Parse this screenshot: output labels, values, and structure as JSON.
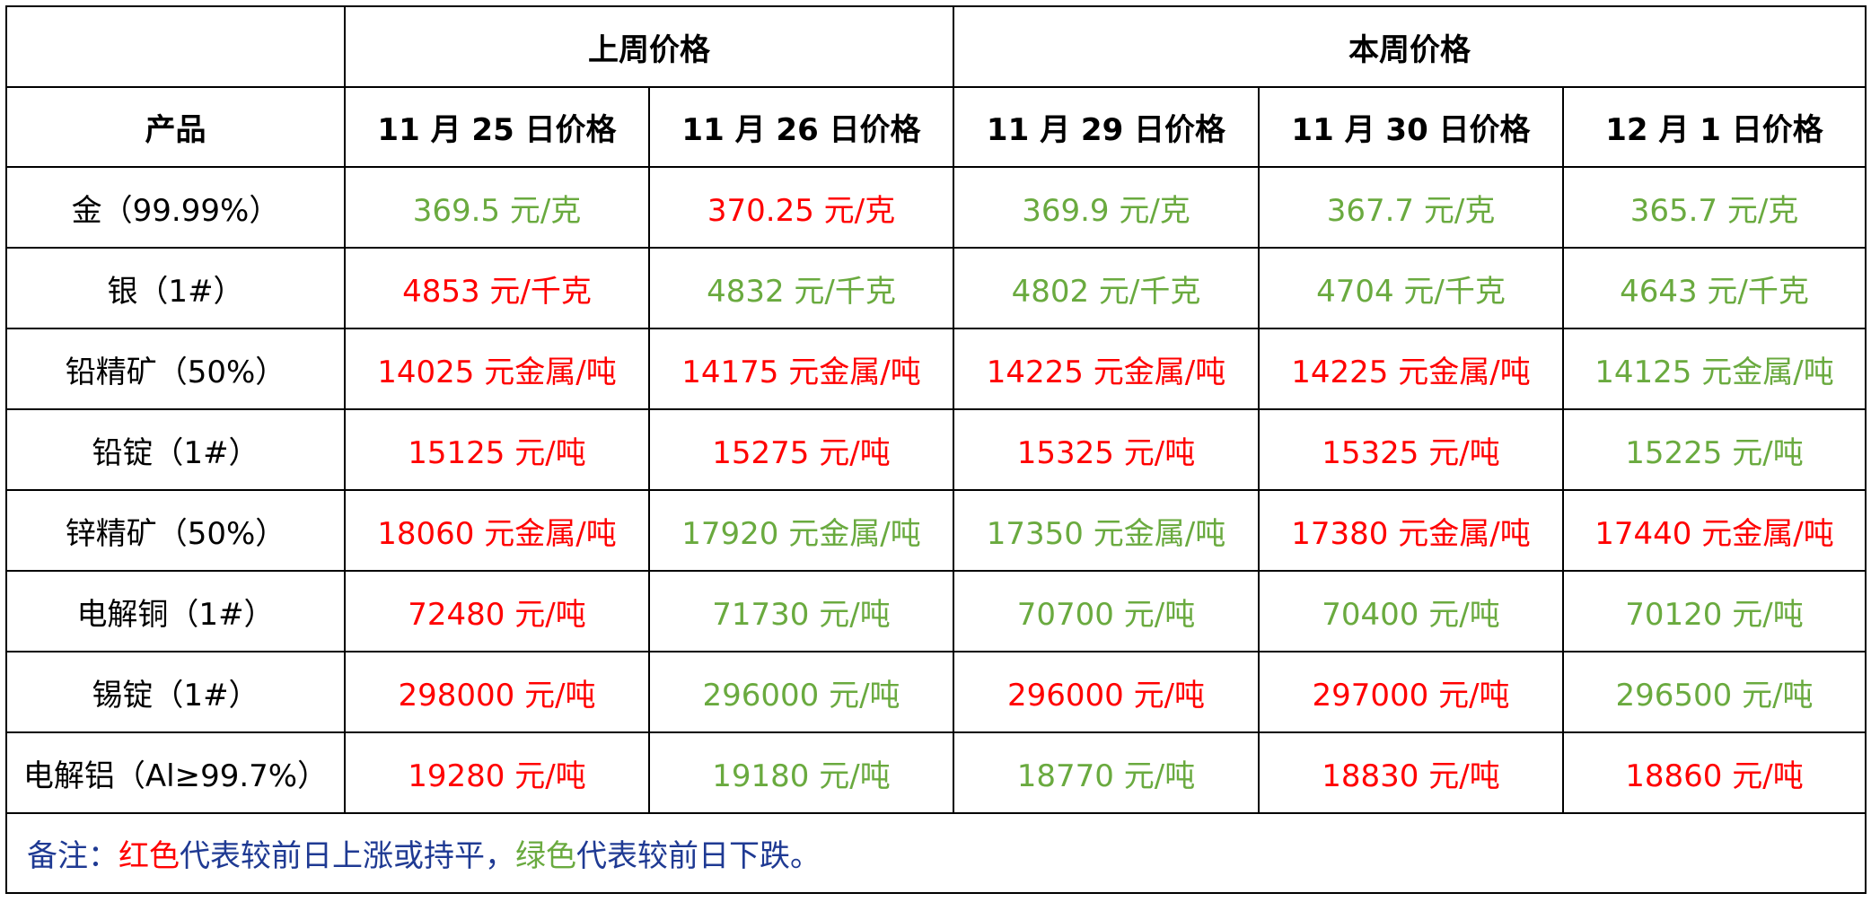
{
  "header": {
    "group_headers": [
      "上周价格",
      "本周价格"
    ],
    "product_header": "产品",
    "date_headers": [
      "11 月 25 日价格",
      "11 月 26 日价格",
      "11 月 29 日价格",
      "11 月 30 日价格",
      "12 月 1 日价格"
    ]
  },
  "rows": [
    {
      "product": "金（99.99%）",
      "cells": [
        {
          "text": "369.5 元/克",
          "color": "#6aaa3f"
        },
        {
          "text": "370.25 元/克",
          "color": "#ff0000"
        },
        {
          "text": "369.9 元/克",
          "color": "#6aaa3f"
        },
        {
          "text": "367.7 元/克",
          "color": "#6aaa3f"
        },
        {
          "text": "365.7 元/克",
          "color": "#6aaa3f"
        }
      ]
    },
    {
      "product": "银（1#）",
      "cells": [
        {
          "text": "4853 元/千克",
          "color": "#ff0000"
        },
        {
          "text": "4832 元/千克",
          "color": "#6aaa3f"
        },
        {
          "text": "4802 元/千克",
          "color": "#6aaa3f"
        },
        {
          "text": "4704 元/千克",
          "color": "#6aaa3f"
        },
        {
          "text": "4643 元/千克",
          "color": "#6aaa3f"
        }
      ]
    },
    {
      "product": "铅精矿（50%）",
      "cells": [
        {
          "text": "14025 元金属/吨",
          "color": "#ff0000"
        },
        {
          "text": "14175 元金属/吨",
          "color": "#ff0000"
        },
        {
          "text": "14225 元金属/吨",
          "color": "#ff0000"
        },
        {
          "text": "14225 元金属/吨",
          "color": "#ff0000"
        },
        {
          "text": "14125 元金属/吨",
          "color": "#6aaa3f"
        }
      ]
    },
    {
      "product": "铅锭（1#）",
      "cells": [
        {
          "text": "15125 元/吨",
          "color": "#ff0000"
        },
        {
          "text": "15275 元/吨",
          "color": "#ff0000"
        },
        {
          "text": "15325 元/吨",
          "color": "#ff0000"
        },
        {
          "text": "15325 元/吨",
          "color": "#ff0000"
        },
        {
          "text": "15225 元/吨",
          "color": "#6aaa3f"
        }
      ]
    },
    {
      "product": "锌精矿（50%）",
      "cells": [
        {
          "text": "18060 元金属/吨",
          "color": "#ff0000"
        },
        {
          "text": "17920 元金属/吨",
          "color": "#6aaa3f"
        },
        {
          "text": "17350 元金属/吨",
          "color": "#6aaa3f"
        },
        {
          "text": "17380 元金属/吨",
          "color": "#ff0000"
        },
        {
          "text": "17440 元金属/吨",
          "color": "#ff0000"
        }
      ]
    },
    {
      "product": "电解铜（1#）",
      "cells": [
        {
          "text": "72480 元/吨",
          "color": "#ff0000"
        },
        {
          "text": "71730 元/吨",
          "color": "#6aaa3f"
        },
        {
          "text": "70700 元/吨",
          "color": "#6aaa3f"
        },
        {
          "text": "70400 元/吨",
          "color": "#6aaa3f"
        },
        {
          "text": "70120 元/吨",
          "color": "#6aaa3f"
        }
      ]
    },
    {
      "product": "锡锭（1#）",
      "cells": [
        {
          "text": "298000 元/吨",
          "color": "#ff0000"
        },
        {
          "text": "296000 元/吨",
          "color": "#6aaa3f"
        },
        {
          "text": "296000 元/吨",
          "color": "#ff0000"
        },
        {
          "text": "297000 元/吨",
          "color": "#ff0000"
        },
        {
          "text": "296500 元/吨",
          "color": "#6aaa3f"
        }
      ]
    },
    {
      "product": "电解铝（Al≥99.7%）",
      "cells": [
        {
          "text": "19280 元/吨",
          "color": "#ff0000"
        },
        {
          "text": "19180 元/吨",
          "color": "#6aaa3f"
        },
        {
          "text": "18770 元/吨",
          "color": "#6aaa3f"
        },
        {
          "text": "18830 元/吨",
          "color": "#ff0000"
        },
        {
          "text": "18860 元/吨",
          "color": "#ff0000"
        }
      ]
    }
  ],
  "note": [
    {
      "text": "备注：",
      "color": "#1f3a93"
    },
    {
      "text": "红色",
      "color": "#ff0000"
    },
    {
      "text": "代表较前日上涨或持平，",
      "color": "#1f3a93"
    },
    {
      "text": "绿色",
      "color": "#6aaa3f"
    },
    {
      "text": "代表较前日下跌。",
      "color": "#1f3a93"
    }
  ]
}
